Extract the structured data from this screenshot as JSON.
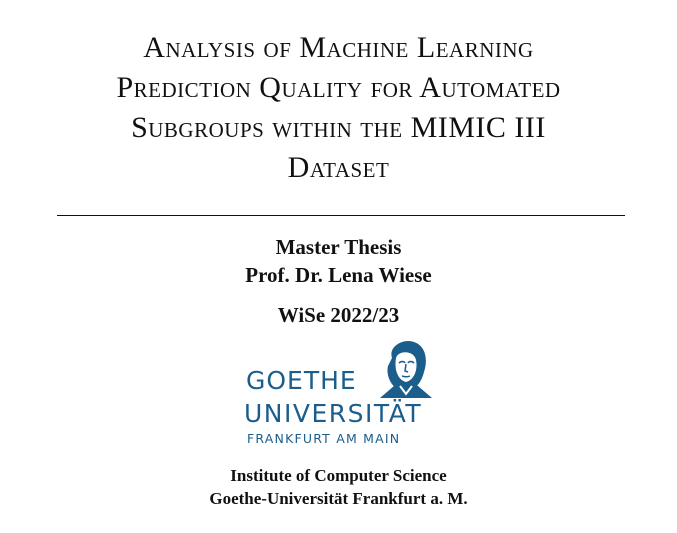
{
  "title": {
    "line1": "Analysis of Machine Learning",
    "line2": "Prediction Quality for Automated",
    "line3": "Subgroups within the MIMIC III",
    "line4": "Dataset"
  },
  "thesis_type": "Master Thesis",
  "supervisor": "Prof. Dr. Lena Wiese",
  "semester": "WiSe 2022/23",
  "logo": {
    "word1": "GOETHE",
    "word2": "UNIVERSITÄT",
    "city": "FRANKFURT AM MAIN",
    "color": "#1b5e8c",
    "icon": "goethe-portrait-icon"
  },
  "institute": {
    "line1": "Institute of Computer Science",
    "line2": "Goethe-Universität Frankfurt a. M."
  }
}
